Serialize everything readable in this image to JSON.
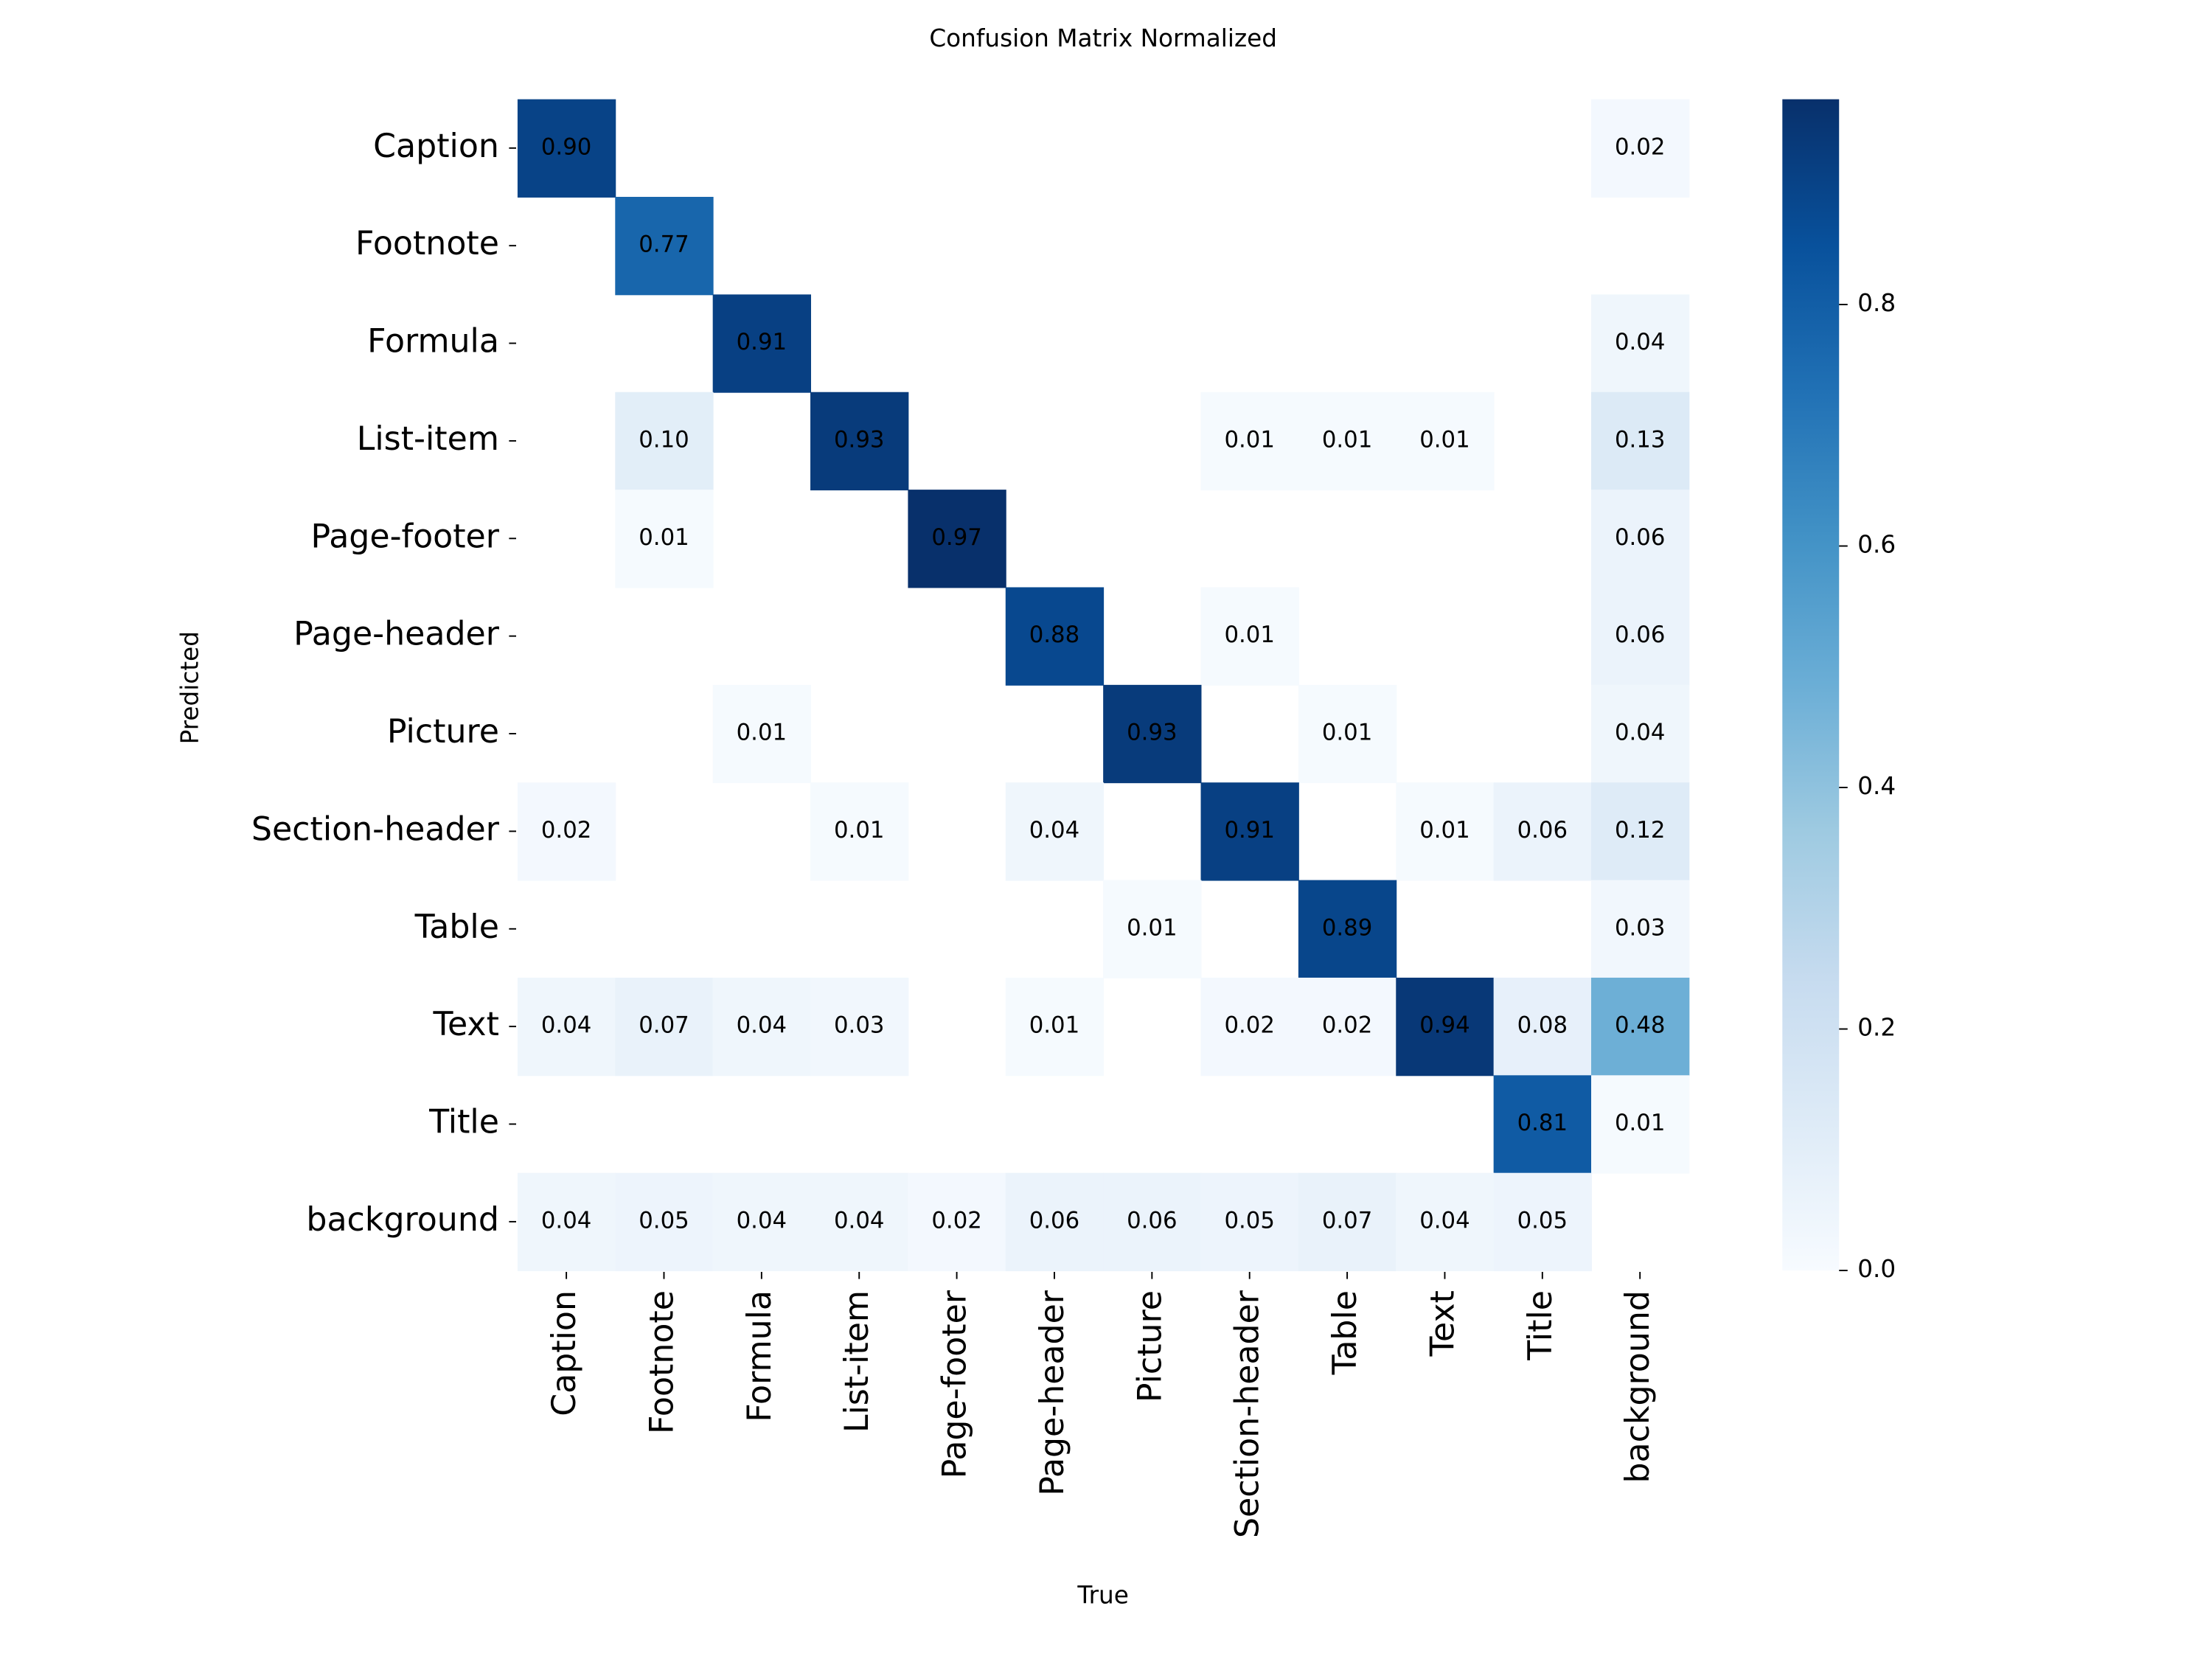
{
  "chart_data": {
    "type": "heatmap",
    "title": "Confusion Matrix Normalized",
    "xlabel": "True",
    "ylabel": "Predicted",
    "x_categories": [
      "Caption",
      "Footnote",
      "Formula",
      "List-item",
      "Page-footer",
      "Page-header",
      "Picture",
      "Section-header",
      "Table",
      "Text",
      "Title",
      "background"
    ],
    "y_categories": [
      "Caption",
      "Footnote",
      "Formula",
      "List-item",
      "Page-footer",
      "Page-header",
      "Picture",
      "Section-header",
      "Table",
      "Text",
      "Title",
      "background"
    ],
    "values": [
      [
        0.9,
        null,
        null,
        null,
        null,
        null,
        null,
        null,
        null,
        null,
        null,
        0.02
      ],
      [
        null,
        0.77,
        null,
        null,
        null,
        null,
        null,
        null,
        null,
        null,
        null,
        null
      ],
      [
        null,
        null,
        0.91,
        null,
        null,
        null,
        null,
        null,
        null,
        null,
        null,
        0.04
      ],
      [
        null,
        0.1,
        null,
        0.93,
        null,
        null,
        null,
        0.01,
        0.01,
        0.01,
        null,
        0.13
      ],
      [
        null,
        0.01,
        null,
        null,
        0.97,
        null,
        null,
        null,
        null,
        null,
        null,
        0.06
      ],
      [
        null,
        null,
        null,
        null,
        null,
        0.88,
        null,
        0.01,
        null,
        null,
        null,
        0.06
      ],
      [
        null,
        null,
        0.01,
        null,
        null,
        null,
        0.93,
        null,
        0.01,
        null,
        null,
        0.04
      ],
      [
        0.02,
        null,
        null,
        0.01,
        null,
        0.04,
        null,
        0.91,
        null,
        0.01,
        0.06,
        0.12
      ],
      [
        null,
        null,
        null,
        null,
        null,
        null,
        0.01,
        null,
        0.89,
        null,
        null,
        0.03
      ],
      [
        0.04,
        0.07,
        0.04,
        0.03,
        null,
        0.01,
        null,
        0.02,
        0.02,
        0.94,
        0.08,
        0.48
      ],
      [
        null,
        null,
        null,
        null,
        null,
        null,
        null,
        null,
        null,
        null,
        0.81,
        0.01
      ],
      [
        0.04,
        0.05,
        0.04,
        0.04,
        0.02,
        0.06,
        0.06,
        0.05,
        0.07,
        0.04,
        0.05,
        null
      ]
    ],
    "value_labels": [
      [
        "0.90",
        null,
        null,
        null,
        null,
        null,
        null,
        null,
        null,
        null,
        null,
        "0.02"
      ],
      [
        null,
        "0.77",
        null,
        null,
        null,
        null,
        null,
        null,
        null,
        null,
        null,
        null
      ],
      [
        null,
        null,
        "0.91",
        null,
        null,
        null,
        null,
        null,
        null,
        null,
        null,
        "0.04"
      ],
      [
        null,
        "0.10",
        null,
        "0.93",
        null,
        null,
        null,
        "0.01",
        "0.01",
        "0.01",
        null,
        "0.13"
      ],
      [
        null,
        "0.01",
        null,
        null,
        "0.97",
        null,
        null,
        null,
        null,
        null,
        null,
        "0.06"
      ],
      [
        null,
        null,
        null,
        null,
        null,
        "0.88",
        null,
        "0.01",
        null,
        null,
        null,
        "0.06"
      ],
      [
        null,
        null,
        "0.01",
        null,
        null,
        null,
        "0.93",
        null,
        "0.01",
        null,
        null,
        "0.04"
      ],
      [
        "0.02",
        null,
        null,
        "0.01",
        null,
        "0.04",
        null,
        "0.91",
        null,
        "0.01",
        "0.06",
        "0.12"
      ],
      [
        null,
        null,
        null,
        null,
        null,
        null,
        "0.01",
        null,
        "0.89",
        null,
        null,
        "0.03"
      ],
      [
        "0.04",
        "0.07",
        "0.04",
        "0.03",
        null,
        "0.01",
        null,
        "0.02",
        "0.02",
        "0.94",
        "0.08",
        "0.48"
      ],
      [
        null,
        null,
        null,
        null,
        null,
        null,
        null,
        null,
        null,
        null,
        "0.81",
        "0.01"
      ],
      [
        "0.04",
        "0.05",
        "0.04",
        "0.04",
        "0.02",
        "0.06",
        "0.06",
        "0.05",
        "0.07",
        "0.04",
        "0.05",
        null
      ]
    ],
    "clim": [
      0,
      0.97
    ],
    "cticks": [
      {
        "value": 0,
        "label": "0.0"
      },
      0.2,
      0.4,
      0.6,
      0.8
    ],
    "colormap": [
      "#f7fbff",
      "#deebf7",
      "#c6dbef",
      "#9ecae1",
      "#6baed6",
      "#4292c6",
      "#2171b5",
      "#08519c",
      "#08306b"
    ]
  }
}
